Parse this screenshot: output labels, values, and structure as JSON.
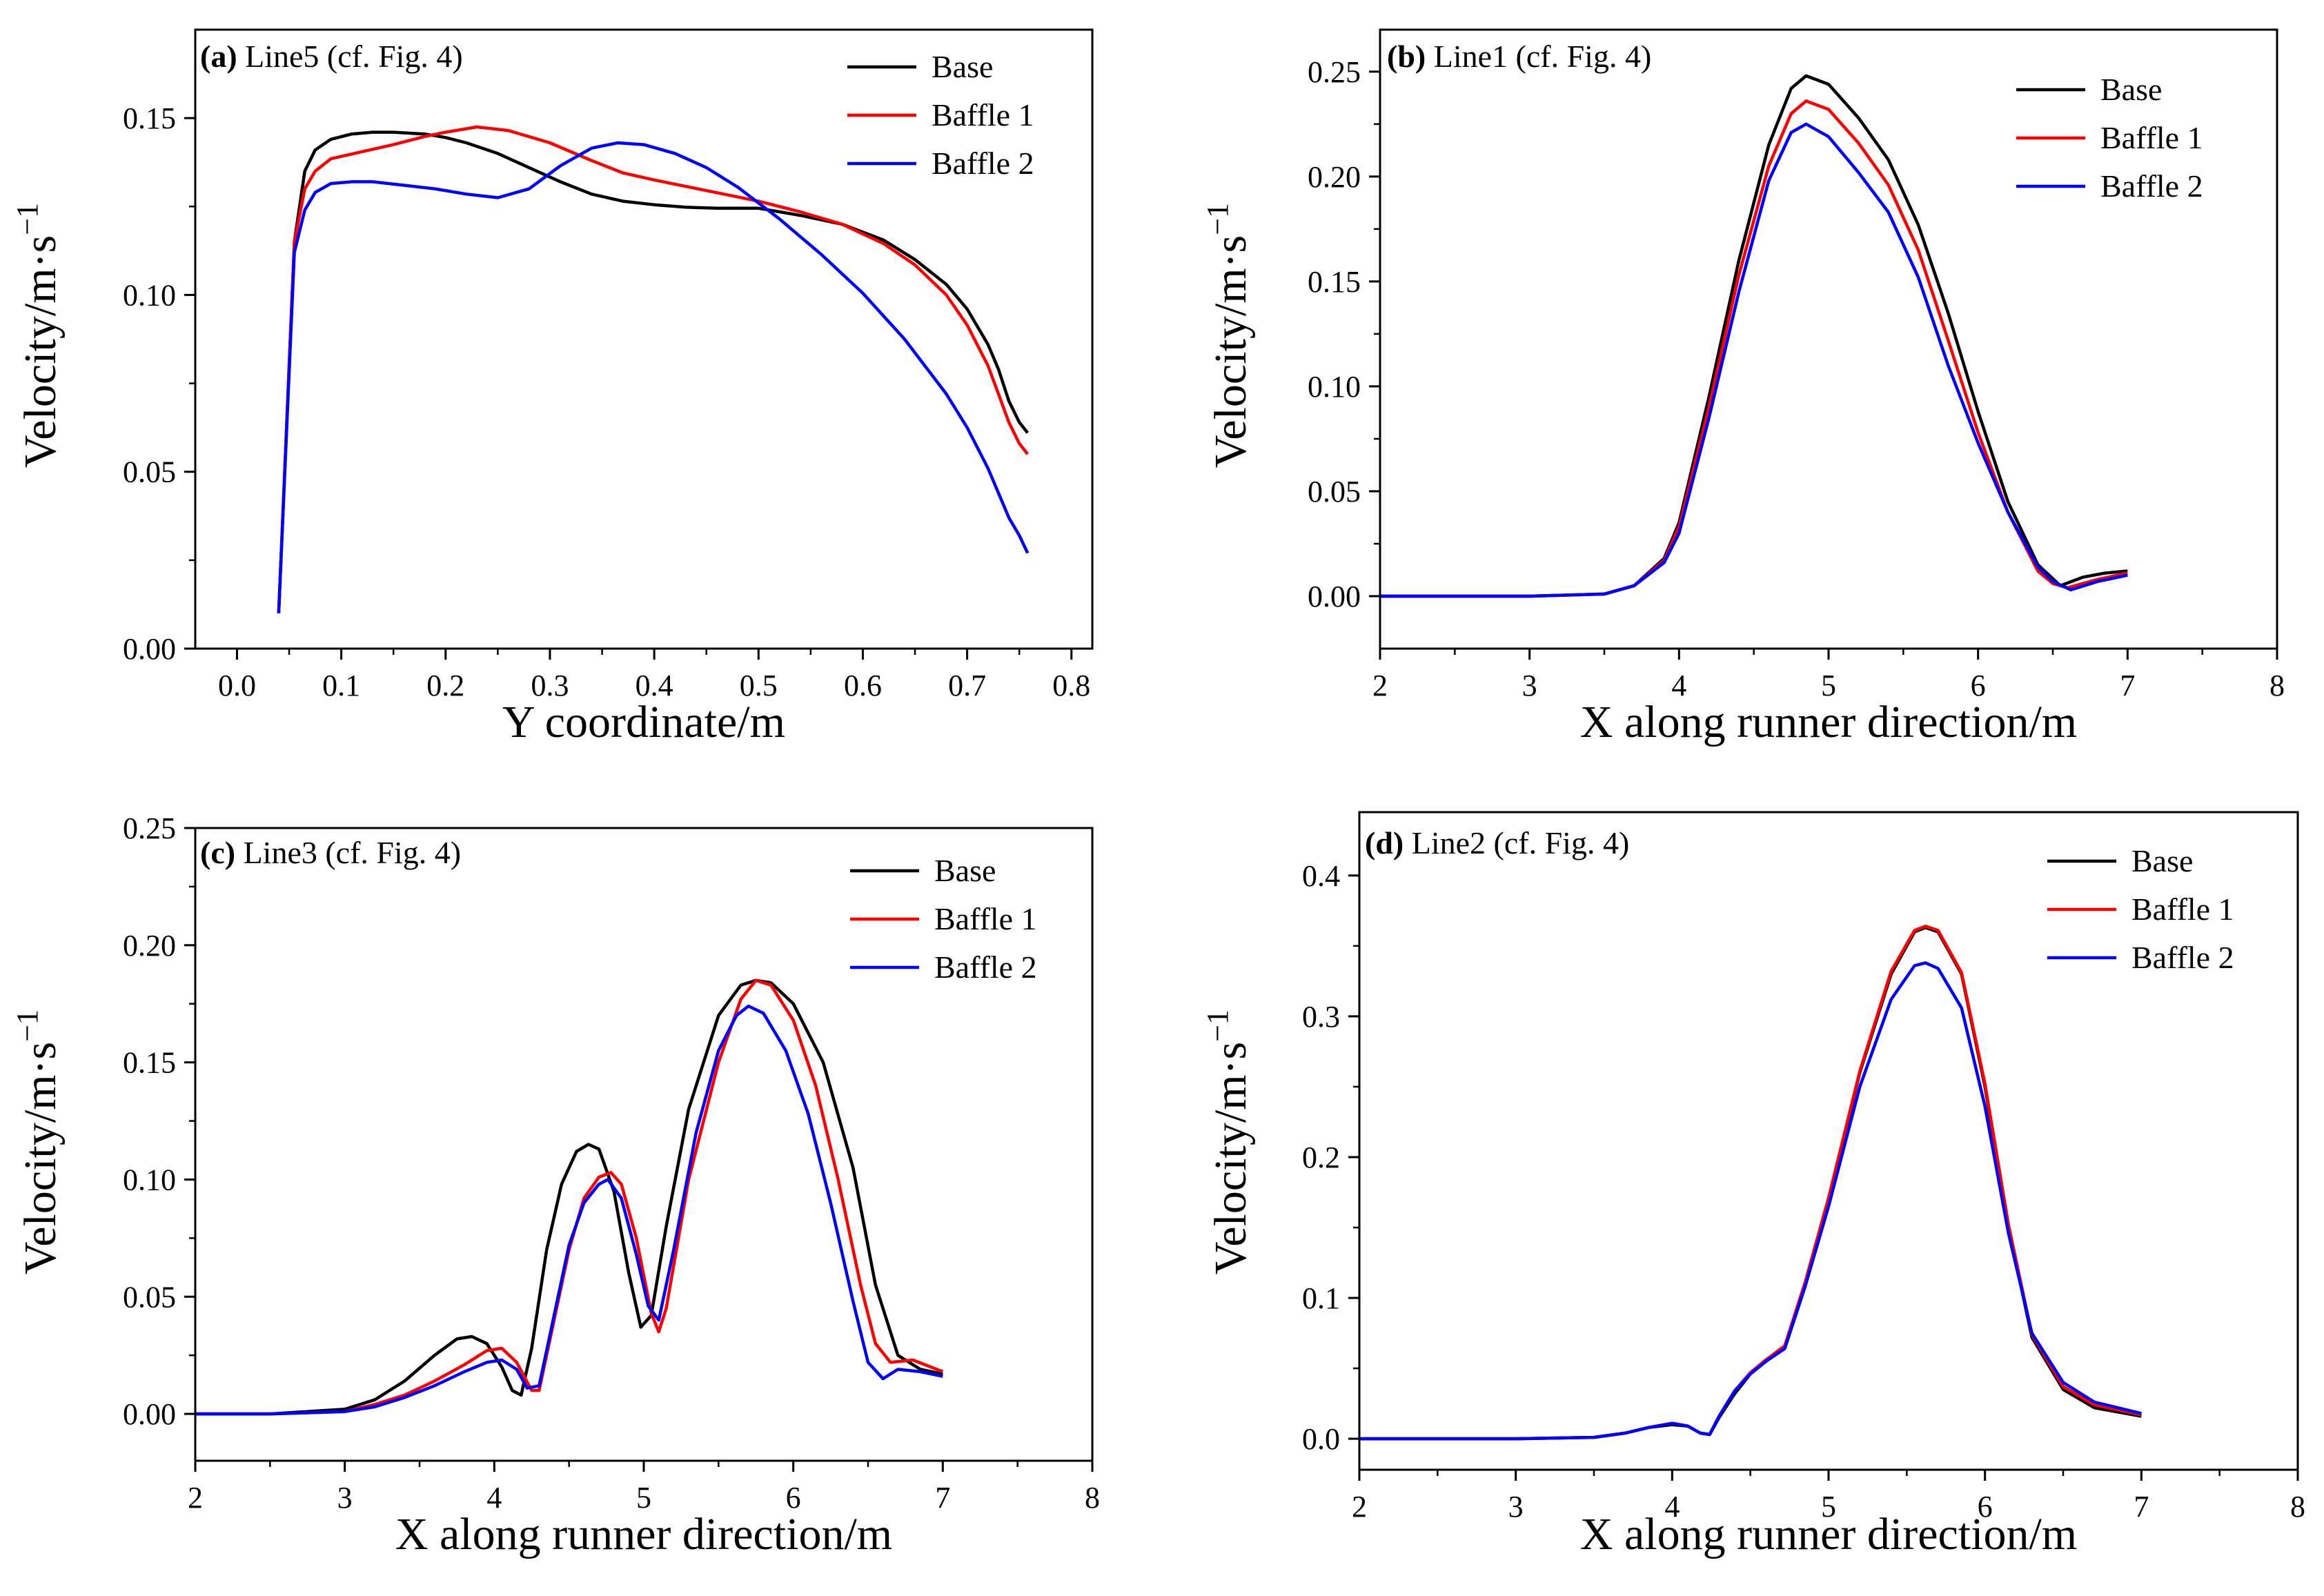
{
  "colors": {
    "Base": "#000000",
    "Baffle 1": "#ff0000",
    "Baffle 2": "#0000ff"
  },
  "chart_data": [
    {
      "type": "line",
      "tag": "(a)",
      "title": "Line5 (cf. Fig. 4)",
      "xlabel": "Y coordinate/m",
      "ylabel": "Velocity/m·s",
      "ylabel_sup": "−1",
      "xlim": [
        -0.04,
        0.82
      ],
      "ylim": [
        0.0,
        0.175
      ],
      "xticks": [
        0.0,
        0.1,
        0.2,
        0.3,
        0.4,
        0.5,
        0.6,
        0.7,
        0.8
      ],
      "xtick_labels": [
        "0.0",
        "0.1",
        "0.2",
        "0.3",
        "0.4",
        "0.5",
        "0.6",
        "0.7",
        "0.8"
      ],
      "yticks": [
        0.0,
        0.05,
        0.1,
        0.15
      ],
      "ytick_labels": [
        "0.00",
        "0.05",
        "0.10",
        "0.15"
      ],
      "legend_labels": [
        "Base",
        "Baffle 1",
        "Baffle 2"
      ],
      "series": [
        {
          "name": "Base",
          "x": [
            0.04,
            0.055,
            0.065,
            0.075,
            0.09,
            0.11,
            0.13,
            0.15,
            0.18,
            0.2,
            0.22,
            0.25,
            0.28,
            0.31,
            0.34,
            0.37,
            0.4,
            0.43,
            0.46,
            0.5,
            0.54,
            0.58,
            0.62,
            0.65,
            0.68,
            0.7,
            0.72,
            0.73,
            0.74,
            0.75,
            0.758
          ],
          "y": [
            0.01,
            0.115,
            0.135,
            0.141,
            0.144,
            0.1455,
            0.146,
            0.146,
            0.1455,
            0.1445,
            0.143,
            0.14,
            0.136,
            0.132,
            0.1285,
            0.1265,
            0.1255,
            0.1248,
            0.1245,
            0.1245,
            0.1225,
            0.12,
            0.1155,
            0.11,
            0.103,
            0.096,
            0.086,
            0.079,
            0.07,
            0.064,
            0.061
          ]
        },
        {
          "name": "Baffle 1",
          "x": [
            0.04,
            0.055,
            0.065,
            0.075,
            0.09,
            0.12,
            0.15,
            0.18,
            0.2,
            0.23,
            0.26,
            0.3,
            0.34,
            0.37,
            0.4,
            0.45,
            0.5,
            0.54,
            0.58,
            0.62,
            0.65,
            0.68,
            0.7,
            0.72,
            0.73,
            0.74,
            0.75,
            0.758
          ],
          "y": [
            0.01,
            0.115,
            0.13,
            0.135,
            0.1385,
            0.1405,
            0.1425,
            0.1448,
            0.146,
            0.1475,
            0.1465,
            0.143,
            0.138,
            0.1345,
            0.1325,
            0.1295,
            0.1265,
            0.1235,
            0.12,
            0.1145,
            0.1085,
            0.1,
            0.0915,
            0.08,
            0.072,
            0.064,
            0.058,
            0.055
          ]
        },
        {
          "name": "Baffle 2",
          "x": [
            0.04,
            0.055,
            0.065,
            0.075,
            0.09,
            0.11,
            0.13,
            0.16,
            0.19,
            0.22,
            0.25,
            0.28,
            0.31,
            0.34,
            0.365,
            0.39,
            0.42,
            0.45,
            0.48,
            0.52,
            0.56,
            0.6,
            0.64,
            0.68,
            0.7,
            0.72,
            0.73,
            0.74,
            0.75,
            0.758
          ],
          "y": [
            0.01,
            0.112,
            0.124,
            0.129,
            0.1315,
            0.132,
            0.132,
            0.131,
            0.13,
            0.1285,
            0.1275,
            0.13,
            0.1365,
            0.1415,
            0.143,
            0.1425,
            0.14,
            0.136,
            0.1305,
            0.1215,
            0.1115,
            0.1005,
            0.0875,
            0.072,
            0.0625,
            0.051,
            0.044,
            0.037,
            0.032,
            0.027
          ]
        }
      ]
    },
    {
      "type": "line",
      "tag": "(b)",
      "title": "Line1 (cf. Fig. 4)",
      "xlabel": "X along runner direction/m",
      "ylabel": "Velocity/m·s",
      "ylabel_sup": "−1",
      "xlim": [
        2,
        8
      ],
      "ylim": [
        -0.025,
        0.27
      ],
      "xticks": [
        2,
        3,
        4,
        5,
        6,
        7,
        8
      ],
      "xtick_labels": [
        "2",
        "3",
        "4",
        "5",
        "6",
        "7",
        "8"
      ],
      "yticks": [
        0.0,
        0.05,
        0.1,
        0.15,
        0.2,
        0.25
      ],
      "ytick_labels": [
        "0.00",
        "0.05",
        "0.10",
        "0.15",
        "0.20",
        "0.25"
      ],
      "legend_labels": [
        "Base",
        "Baffle 1",
        "Baffle 2"
      ],
      "series": [
        {
          "name": "Base",
          "x": [
            2.0,
            3.0,
            3.5,
            3.7,
            3.9,
            4.0,
            4.2,
            4.4,
            4.6,
            4.75,
            4.85,
            5.0,
            5.2,
            5.4,
            5.6,
            5.8,
            6.0,
            6.2,
            6.4,
            6.55,
            6.7,
            6.85,
            7.0
          ],
          "y": [
            0.0,
            0.0,
            0.001,
            0.005,
            0.018,
            0.035,
            0.095,
            0.16,
            0.215,
            0.242,
            0.248,
            0.244,
            0.228,
            0.208,
            0.177,
            0.135,
            0.088,
            0.045,
            0.015,
            0.005,
            0.009,
            0.011,
            0.012
          ]
        },
        {
          "name": "Baffle 1",
          "x": [
            2.0,
            3.0,
            3.5,
            3.7,
            3.9,
            4.0,
            4.2,
            4.4,
            4.6,
            4.75,
            4.85,
            5.0,
            5.2,
            5.4,
            5.6,
            5.8,
            6.0,
            6.2,
            6.4,
            6.5,
            6.6,
            6.8,
            7.0
          ],
          "y": [
            0.0,
            0.0,
            0.001,
            0.005,
            0.017,
            0.033,
            0.09,
            0.153,
            0.205,
            0.23,
            0.236,
            0.232,
            0.216,
            0.196,
            0.165,
            0.122,
            0.078,
            0.04,
            0.012,
            0.006,
            0.004,
            0.008,
            0.011
          ]
        },
        {
          "name": "Baffle 2",
          "x": [
            2.0,
            3.0,
            3.5,
            3.7,
            3.9,
            4.0,
            4.2,
            4.4,
            4.6,
            4.75,
            4.85,
            5.0,
            5.2,
            5.4,
            5.6,
            5.8,
            6.0,
            6.2,
            6.4,
            6.5,
            6.62,
            6.8,
            7.0
          ],
          "y": [
            0.0,
            0.0,
            0.001,
            0.005,
            0.016,
            0.03,
            0.085,
            0.145,
            0.198,
            0.221,
            0.225,
            0.219,
            0.202,
            0.183,
            0.152,
            0.11,
            0.073,
            0.04,
            0.014,
            0.007,
            0.003,
            0.007,
            0.01
          ]
        }
      ]
    },
    {
      "type": "line",
      "tag": "(c)",
      "title": "Line3 (cf. Fig. 4)",
      "xlabel": "X along runner direction/m",
      "ylabel": "Velocity/m·s",
      "ylabel_sup": "−1",
      "xlim": [
        2,
        8
      ],
      "ylim": [
        -0.02,
        0.25
      ],
      "xticks": [
        2,
        3,
        4,
        5,
        6,
        7,
        8
      ],
      "xtick_labels": [
        "2",
        "3",
        "4",
        "5",
        "6",
        "7",
        "8"
      ],
      "yticks": [
        0.0,
        0.05,
        0.1,
        0.15,
        0.2,
        0.25
      ],
      "ytick_labels": [
        "0.00",
        "0.05",
        "0.10",
        "0.15",
        "0.20",
        "0.25"
      ],
      "legend_labels": [
        "Base",
        "Baffle 1",
        "Baffle 2"
      ],
      "series": [
        {
          "name": "Base",
          "x": [
            2.0,
            2.5,
            3.0,
            3.2,
            3.4,
            3.6,
            3.75,
            3.85,
            3.95,
            4.05,
            4.12,
            4.18,
            4.25,
            4.35,
            4.45,
            4.55,
            4.63,
            4.7,
            4.8,
            4.9,
            4.98,
            5.05,
            5.15,
            5.3,
            5.5,
            5.65,
            5.75,
            5.85,
            6.0,
            6.2,
            6.4,
            6.55,
            6.7,
            6.85,
            7.0
          ],
          "y": [
            0.0,
            0.0,
            0.002,
            0.006,
            0.014,
            0.025,
            0.032,
            0.033,
            0.03,
            0.02,
            0.01,
            0.008,
            0.028,
            0.07,
            0.098,
            0.112,
            0.115,
            0.113,
            0.095,
            0.06,
            0.037,
            0.042,
            0.08,
            0.13,
            0.17,
            0.183,
            0.185,
            0.184,
            0.175,
            0.15,
            0.105,
            0.055,
            0.025,
            0.019,
            0.017
          ]
        },
        {
          "name": "Baffle 1",
          "x": [
            2.0,
            2.5,
            3.0,
            3.2,
            3.4,
            3.6,
            3.8,
            3.95,
            4.05,
            4.15,
            4.25,
            4.3,
            4.4,
            4.5,
            4.6,
            4.7,
            4.78,
            4.85,
            4.95,
            5.05,
            5.1,
            5.15,
            5.3,
            5.5,
            5.65,
            5.75,
            5.85,
            6.0,
            6.15,
            6.3,
            6.45,
            6.55,
            6.65,
            6.8,
            7.0
          ],
          "y": [
            0.0,
            0.0,
            0.001,
            0.004,
            0.008,
            0.014,
            0.021,
            0.027,
            0.028,
            0.022,
            0.01,
            0.01,
            0.04,
            0.07,
            0.092,
            0.101,
            0.103,
            0.098,
            0.075,
            0.043,
            0.035,
            0.045,
            0.1,
            0.15,
            0.177,
            0.185,
            0.183,
            0.168,
            0.14,
            0.1,
            0.055,
            0.03,
            0.022,
            0.023,
            0.018
          ]
        },
        {
          "name": "Baffle 2",
          "x": [
            2.0,
            2.5,
            3.0,
            3.2,
            3.4,
            3.6,
            3.8,
            3.95,
            4.05,
            4.15,
            4.22,
            4.3,
            4.4,
            4.5,
            4.6,
            4.7,
            4.76,
            4.85,
            4.95,
            5.03,
            5.1,
            5.2,
            5.35,
            5.5,
            5.62,
            5.7,
            5.8,
            5.95,
            6.1,
            6.25,
            6.4,
            6.5,
            6.6,
            6.7,
            6.85,
            7.0
          ],
          "y": [
            0.0,
            0.0,
            0.001,
            0.003,
            0.007,
            0.012,
            0.018,
            0.022,
            0.023,
            0.019,
            0.011,
            0.012,
            0.042,
            0.072,
            0.09,
            0.098,
            0.1,
            0.092,
            0.068,
            0.046,
            0.04,
            0.07,
            0.12,
            0.155,
            0.17,
            0.174,
            0.171,
            0.155,
            0.128,
            0.09,
            0.048,
            0.022,
            0.015,
            0.019,
            0.018,
            0.016
          ]
        }
      ]
    },
    {
      "type": "line",
      "tag": "(d)",
      "title": "Line2 (cf. Fig. 4)",
      "xlabel": "X along runner direction/m",
      "ylabel": "Velocity/m·s",
      "ylabel_sup": "−1",
      "xlim": [
        2,
        8
      ],
      "ylim": [
        -0.022,
        0.445
      ],
      "xticks": [
        2,
        3,
        4,
        5,
        6,
        7,
        8
      ],
      "xtick_labels": [
        "2",
        "3",
        "4",
        "5",
        "6",
        "7",
        "8"
      ],
      "yticks": [
        0.0,
        0.1,
        0.2,
        0.3,
        0.4
      ],
      "ytick_labels": [
        "0.0",
        "0.1",
        "0.2",
        "0.3",
        "0.4"
      ],
      "legend_labels": [
        "Base",
        "Baffle 1",
        "Baffle 2"
      ],
      "series": [
        {
          "name": "Base",
          "x": [
            2.0,
            3.0,
            3.5,
            3.7,
            3.85,
            4.0,
            4.1,
            4.18,
            4.24,
            4.3,
            4.4,
            4.5,
            4.6,
            4.72,
            4.85,
            5.0,
            5.2,
            5.4,
            5.55,
            5.62,
            5.7,
            5.85,
            6.0,
            6.15,
            6.3,
            6.5,
            6.7,
            7.0
          ],
          "y": [
            0.0,
            0.0,
            0.001,
            0.004,
            0.008,
            0.01,
            0.009,
            0.004,
            0.003,
            0.015,
            0.032,
            0.046,
            0.055,
            0.065,
            0.11,
            0.17,
            0.26,
            0.33,
            0.36,
            0.363,
            0.36,
            0.33,
            0.25,
            0.15,
            0.072,
            0.035,
            0.022,
            0.016
          ]
        },
        {
          "name": "Baffle 1",
          "x": [
            2.0,
            3.0,
            3.5,
            3.7,
            3.85,
            4.0,
            4.1,
            4.18,
            4.24,
            4.3,
            4.4,
            4.5,
            4.6,
            4.72,
            4.85,
            5.0,
            5.2,
            5.4,
            5.55,
            5.62,
            5.7,
            5.85,
            6.0,
            6.15,
            6.3,
            6.5,
            6.7,
            7.0
          ],
          "y": [
            0.0,
            0.0,
            0.001,
            0.004,
            0.008,
            0.011,
            0.009,
            0.004,
            0.003,
            0.016,
            0.034,
            0.047,
            0.056,
            0.066,
            0.111,
            0.171,
            0.261,
            0.332,
            0.361,
            0.364,
            0.361,
            0.331,
            0.252,
            0.152,
            0.074,
            0.037,
            0.024,
            0.017
          ]
        },
        {
          "name": "Baffle 2",
          "x": [
            2.0,
            3.0,
            3.5,
            3.7,
            3.85,
            4.0,
            4.1,
            4.18,
            4.24,
            4.3,
            4.4,
            4.5,
            4.6,
            4.72,
            4.85,
            5.0,
            5.2,
            5.4,
            5.55,
            5.62,
            5.7,
            5.85,
            6.0,
            6.15,
            6.3,
            6.5,
            6.7,
            7.0
          ],
          "y": [
            0.0,
            0.0,
            0.001,
            0.004,
            0.008,
            0.011,
            0.009,
            0.004,
            0.003,
            0.016,
            0.034,
            0.046,
            0.055,
            0.064,
            0.108,
            0.165,
            0.25,
            0.312,
            0.336,
            0.338,
            0.334,
            0.306,
            0.236,
            0.146,
            0.075,
            0.04,
            0.026,
            0.018
          ]
        }
      ]
    }
  ]
}
